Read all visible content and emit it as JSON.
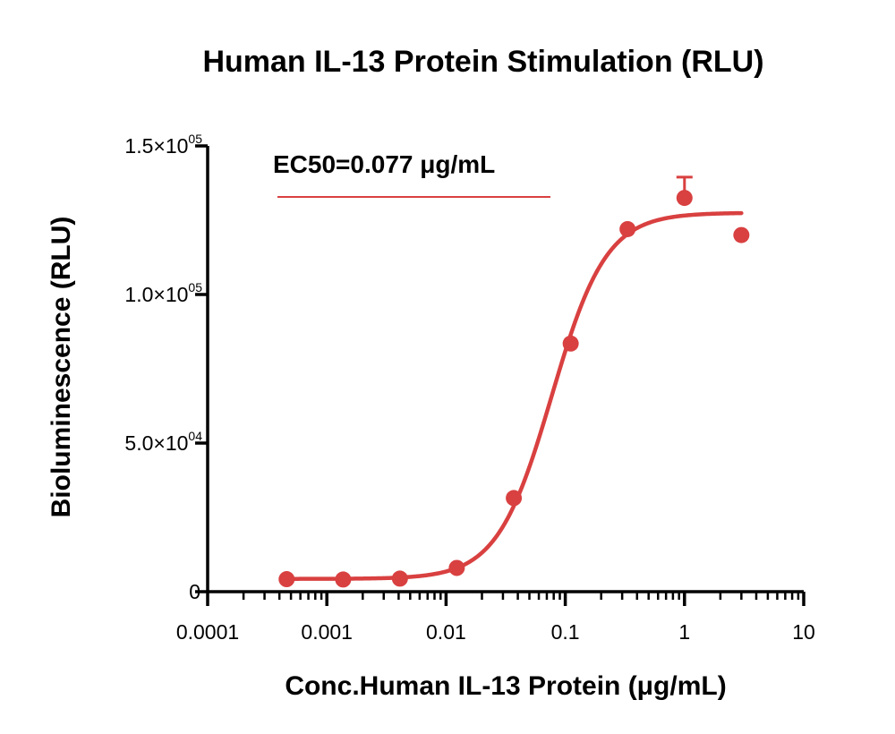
{
  "chart_data": {
    "type": "scatter",
    "title": "Human IL-13 Protein Stimulation (RLU)",
    "xlabel": "Conc.Human IL-13 Protein (μg/mL)",
    "ylabel": "Bioluminescence (RLU)",
    "x_scale": "log",
    "xlim": [
      0.0001,
      10
    ],
    "ylim": [
      0,
      150000
    ],
    "x_ticks": [
      0.0001,
      0.001,
      0.01,
      0.1,
      1,
      10
    ],
    "x_tick_labels": [
      "0.0001",
      "0.001",
      "0.01",
      "0.1",
      "1",
      "10"
    ],
    "y_ticks": [
      {
        "value": 0,
        "label": "0",
        "mantissa": "",
        "exp": ""
      },
      {
        "value": 50000,
        "label": "5.0×10^04",
        "mantissa": "5.0×10",
        "exp": "04"
      },
      {
        "value": 100000,
        "label": "1.0×10^05",
        "mantissa": "1.0×10",
        "exp": "05"
      },
      {
        "value": 150000,
        "label": "1.5×10^05",
        "mantissa": "1.5×10",
        "exp": "05"
      }
    ],
    "color": "#d94040",
    "series": [
      {
        "name": "EC50=0.077 μg/mL",
        "points": [
          {
            "x": 0.00046,
            "y": 4200
          },
          {
            "x": 0.00137,
            "y": 4100
          },
          {
            "x": 0.0041,
            "y": 4400
          },
          {
            "x": 0.0123,
            "y": 8000
          },
          {
            "x": 0.037,
            "y": 31500
          },
          {
            "x": 0.111,
            "y": 83500
          },
          {
            "x": 0.333,
            "y": 122000
          },
          {
            "x": 1.0,
            "y": 132500,
            "err": 7000
          },
          {
            "x": 3.0,
            "y": 120000
          }
        ],
        "fit": {
          "model": "4PL",
          "bottom": 4300,
          "top": 127500,
          "ec50": 0.077,
          "hill": 1.9,
          "x_range": [
            0.00046,
            3.0
          ]
        }
      }
    ],
    "legend": {
      "text": "EC50=0.077 μg/mL",
      "placement": "top-left"
    },
    "grid": false
  }
}
